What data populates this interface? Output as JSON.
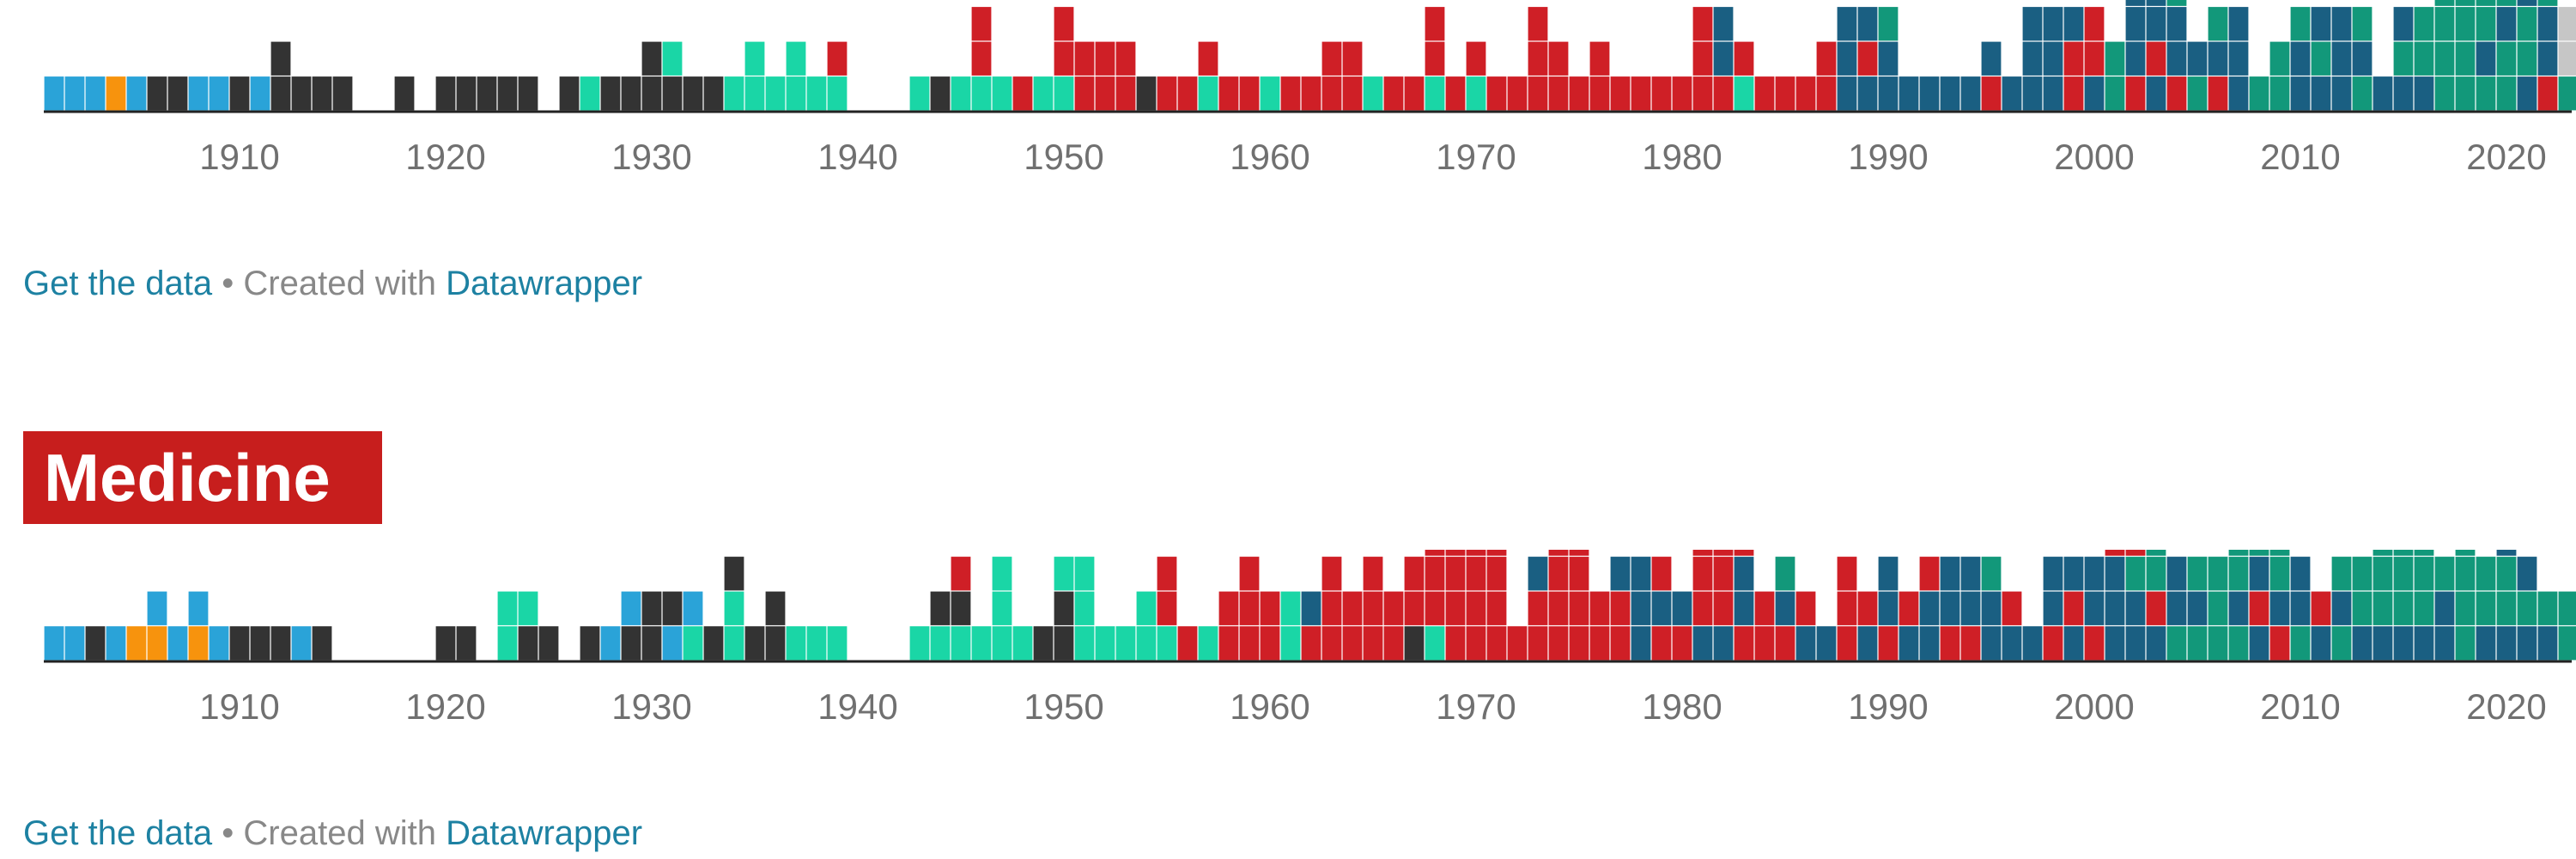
{
  "footer_top": {
    "data_link": "Get the data",
    "separator": "•",
    "created": "Created with",
    "tool_link": "Datawrapper"
  },
  "footer_bottom": {
    "data_link": "Get the data",
    "separator": "•",
    "created": "Created with",
    "tool_link": "Datawrapper"
  },
  "medicine": {
    "title": "Medicine"
  },
  "chart_data": [
    {
      "type": "bar",
      "stacking": "stacked unit blocks per year",
      "x_range": [
        1901,
        2023
      ],
      "x_ticks": [
        1910,
        1920,
        1930,
        1940,
        1950,
        1960,
        1970,
        1980,
        1990,
        2000,
        2010,
        2020
      ],
      "colors": {
        "A": "#2aa3d8",
        "B": "#f7930d",
        "C": "#333333",
        "D": "#1ad6a6",
        "E": "#cf1f26",
        "F": "#1a5f82",
        "G": "#12987a",
        "H": "#c6c6c6"
      },
      "x": [
        1901,
        1902,
        1903,
        1904,
        1905,
        1906,
        1907,
        1908,
        1909,
        1910,
        1911,
        1912,
        1913,
        1914,
        1915,
        1916,
        1917,
        1918,
        1919,
        1920,
        1921,
        1922,
        1923,
        1924,
        1925,
        1926,
        1927,
        1928,
        1929,
        1930,
        1931,
        1932,
        1933,
        1934,
        1935,
        1936,
        1937,
        1938,
        1939,
        1940,
        1941,
        1942,
        1943,
        1944,
        1945,
        1946,
        1947,
        1948,
        1949,
        1950,
        1951,
        1952,
        1953,
        1954,
        1955,
        1956,
        1957,
        1958,
        1959,
        1960,
        1961,
        1962,
        1963,
        1964,
        1965,
        1966,
        1967,
        1968,
        1969,
        1970,
        1971,
        1972,
        1973,
        1974,
        1975,
        1976,
        1977,
        1978,
        1979,
        1980,
        1981,
        1982,
        1983,
        1984,
        1985,
        1986,
        1987,
        1988,
        1989,
        1990,
        1991,
        1992,
        1993,
        1994,
        1995,
        1996,
        1997,
        1998,
        1999,
        2000,
        2001,
        2002,
        2003,
        2004,
        2005,
        2006,
        2007,
        2008,
        2009,
        2010,
        2011,
        2012,
        2013,
        2014,
        2015,
        2016,
        2017,
        2018,
        2019,
        2020,
        2021,
        2022,
        2023
      ],
      "stacks": [
        "A",
        "A",
        "A",
        "B",
        "A",
        "C",
        "C",
        "A",
        "A",
        "C",
        "A",
        "CC",
        "C",
        "C",
        "C",
        "",
        "",
        "C",
        "",
        "C",
        "C",
        "C",
        "C",
        "C",
        "",
        "C",
        "D",
        "C",
        "C",
        "CC",
        "CD",
        "C",
        "C",
        "D",
        "DD",
        "D",
        "DD",
        "D",
        "DE",
        "",
        "",
        "",
        "D",
        "C",
        "D",
        "DEE",
        "D",
        "E",
        "D",
        "DEE",
        "EE",
        "EE",
        "EE",
        "C",
        "E",
        "E",
        "DE",
        "E",
        "E",
        "D",
        "E",
        "E",
        "EE",
        "EE",
        "D",
        "E",
        "E",
        "DEE",
        "E",
        "DE",
        "E",
        "E",
        "EEE",
        "EE",
        "E",
        "EE",
        "E",
        "E",
        "E",
        "E",
        "EEE",
        "EFF",
        "DE",
        "E",
        "E",
        "E",
        "EE",
        "FFF",
        "FEF",
        "FFG",
        "F",
        "F",
        "F",
        "F",
        "EF",
        "F",
        "FFF",
        "FFF",
        "EEF",
        "FEE",
        "GG",
        "EFFF",
        "FEFF",
        "EFFG",
        "GF",
        "EFG",
        "FFF",
        "G",
        "GG",
        "FFG",
        "FGF",
        "FFF",
        "GFG",
        "F",
        "FGF",
        "FGG",
        "GGGG",
        "GGGG",
        "GFGG",
        "GGFG",
        "FGGF",
        "EFFG",
        "GHH",
        "HH",
        "FHH"
      ]
    },
    {
      "type": "bar",
      "title": "Medicine",
      "stacking": "stacked unit blocks per year",
      "x_range": [
        1901,
        2023
      ],
      "x_ticks": [
        1910,
        1920,
        1930,
        1940,
        1950,
        1960,
        1970,
        1980,
        1990,
        2000,
        2010,
        2020
      ],
      "colors": {
        "A": "#2aa3d8",
        "B": "#f7930d",
        "C": "#333333",
        "D": "#1ad6a6",
        "E": "#cf1f26",
        "F": "#1a5f82",
        "G": "#12987a"
      },
      "x": [
        1901,
        1902,
        1903,
        1904,
        1905,
        1906,
        1907,
        1908,
        1909,
        1910,
        1911,
        1912,
        1913,
        1914,
        1915,
        1916,
        1917,
        1918,
        1919,
        1920,
        1921,
        1922,
        1923,
        1924,
        1925,
        1926,
        1927,
        1928,
        1929,
        1930,
        1931,
        1932,
        1933,
        1934,
        1935,
        1936,
        1937,
        1938,
        1939,
        1940,
        1941,
        1942,
        1943,
        1944,
        1945,
        1946,
        1947,
        1948,
        1949,
        1950,
        1951,
        1952,
        1953,
        1954,
        1955,
        1956,
        1957,
        1958,
        1959,
        1960,
        1961,
        1962,
        1963,
        1964,
        1965,
        1966,
        1967,
        1968,
        1969,
        1970,
        1971,
        1972,
        1973,
        1974,
        1975,
        1976,
        1977,
        1978,
        1979,
        1980,
        1981,
        1982,
        1983,
        1984,
        1985,
        1986,
        1987,
        1988,
        1989,
        1990,
        1991,
        1992,
        1993,
        1994,
        1995,
        1996,
        1997,
        1998,
        1999,
        2000,
        2001,
        2002,
        2003,
        2004,
        2005,
        2006,
        2007,
        2008,
        2009,
        2010,
        2011,
        2012,
        2013,
        2014,
        2015,
        2016,
        2017,
        2018,
        2019,
        2020,
        2021,
        2022,
        2023
      ],
      "stacks": [
        "A",
        "A",
        "C",
        "A",
        "B",
        "BA",
        "A",
        "BA",
        "A",
        "C",
        "C",
        "C",
        "A",
        "C",
        "",
        "",
        "",
        "",
        "",
        "C",
        "C",
        "",
        "DD",
        "CD",
        "C",
        "",
        "C",
        "A",
        "CA",
        "CC",
        "AC",
        "DA",
        "C",
        "DDC",
        "C",
        "CC",
        "D",
        "D",
        "D",
        "",
        "",
        "",
        "D",
        "DC",
        "DCE",
        "D",
        "DDD",
        "D",
        "C",
        "CCD",
        "DDD",
        "D",
        "D",
        "DD",
        "DEE",
        "E",
        "D",
        "EE",
        "EEE",
        "EE",
        "DD",
        "EF",
        "EEE",
        "EE",
        "EEE",
        "EE",
        "CEE",
        "DEEE",
        "EEEE",
        "EEEE",
        "EEEE",
        "E",
        "EEF",
        "EEEE",
        "EEEE",
        "EE",
        "EEF",
        "FFF",
        "EFE",
        "EF",
        "FEEE",
        "FEEE",
        "EFFE",
        "EE",
        "EFG",
        "FE",
        "F",
        "EEE",
        "FE",
        "EFF",
        "FE",
        "FFE",
        "EFF",
        "EFF",
        "FFG",
        "FE",
        "F",
        "EFF",
        "FEF",
        "EFF",
        "FFFE",
        "FFGE",
        "FEGG",
        "GFF",
        "GFG",
        "GGG",
        "GFGG",
        "FEFG",
        "EFGG",
        "GFF",
        "FE",
        "GFG",
        "FGG",
        "FGGG",
        "FGGG",
        "FGGG",
        "FFG",
        "GGGG",
        "FGG",
        "FGGF",
        "FGF",
        "FG",
        "GG",
        "G",
        "GG"
      ]
    }
  ]
}
